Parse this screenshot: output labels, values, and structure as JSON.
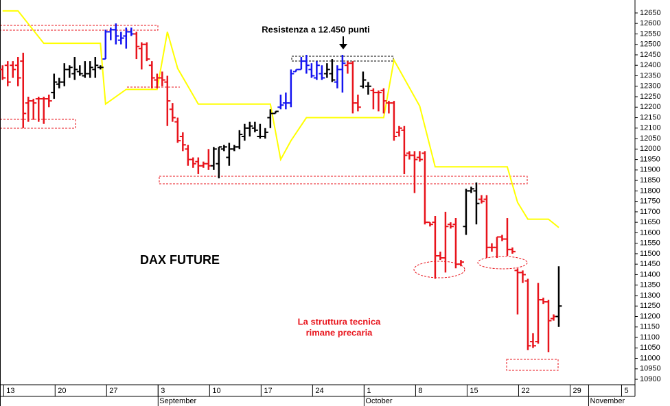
{
  "chart_data": {
    "type": "ohlc",
    "title": "DAX FUTURE",
    "annotations": [
      "Resistenza a 12.450 punti",
      "La struttura tecnica",
      "rimane precaria"
    ],
    "x": [
      0,
      1,
      2,
      3,
      4,
      5,
      6,
      7,
      8,
      9,
      10,
      11,
      12,
      13,
      14,
      15,
      16,
      17,
      18,
      19,
      20,
      21,
      22,
      23,
      24,
      25,
      26,
      27,
      28,
      29,
      30,
      31,
      32,
      33,
      34,
      35,
      36,
      37,
      38,
      39,
      40,
      41,
      42,
      43,
      44,
      45,
      46,
      47,
      48,
      49,
      50,
      51,
      52,
      53,
      54,
      55,
      56,
      57,
      58,
      59,
      60,
      61,
      62,
      63,
      64,
      65,
      66,
      67,
      68,
      69,
      70,
      71,
      72,
      73,
      74,
      75,
      76,
      77,
      78,
      79,
      80,
      81,
      82,
      83,
      84,
      85,
      86,
      87,
      88,
      89,
      90,
      91,
      92,
      93,
      94,
      95,
      96,
      97,
      98,
      99,
      100,
      101,
      102,
      103,
      104,
      105,
      106,
      107,
      108
    ],
    "open": [
      12380,
      12400,
      12400,
      12400,
      12420,
      12220,
      12230,
      12240,
      12240,
      12240,
      12270,
      12310,
      12320,
      12380,
      12360,
      12370,
      12350,
      12360,
      12380,
      12390,
      12430,
      12560,
      12570,
      12520,
      12540,
      12560,
      12550,
      12480,
      12500,
      12400,
      12330,
      12340,
      12320,
      12190,
      12130,
      12060,
      12000,
      11950,
      11940,
      11920,
      11930,
      11920,
      11930,
      12000,
      11960,
      12000,
      12010,
      12060,
      12100,
      12100,
      12060,
      12060,
      12150,
      12170,
      12200,
      12220,
      12220,
      12370,
      12380,
      12420,
      12380,
      12340,
      12360,
      12360,
      12360,
      12320,
      12380,
      12400,
      12410,
      12220,
      12300,
      12300,
      12280,
      12270,
      12280,
      12220,
      12220,
      12080,
      12090,
      11980,
      11970,
      11960,
      11980,
      11650,
      11650,
      11490,
      11480,
      11640,
      11640,
      11450,
      11630,
      11800,
      11800,
      11760,
      11760,
      11530,
      11530,
      11580,
      11570,
      11520,
      11420,
      11410,
      11370,
      11080,
      11080,
      11280,
      11270,
      11190,
      11200
    ],
    "high": [
      12400,
      12420,
      12420,
      12440,
      12460,
      12250,
      12240,
      12250,
      12250,
      12260,
      12360,
      12340,
      12410,
      12400,
      12440,
      12400,
      12420,
      12420,
      12440,
      12400,
      12570,
      12580,
      12600,
      12560,
      12580,
      12580,
      12560,
      12510,
      12510,
      12420,
      12360,
      12370,
      12350,
      12220,
      12150,
      12080,
      12020,
      11960,
      11960,
      11940,
      12000,
      12010,
      12010,
      12020,
      12030,
      12020,
      12090,
      12120,
      12130,
      12130,
      12120,
      12100,
      12190,
      12180,
      12260,
      12270,
      12380,
      12380,
      12440,
      12450,
      12410,
      12420,
      12400,
      12410,
      12430,
      12400,
      12450,
      12420,
      12420,
      12260,
      12370,
      12320,
      12290,
      12280,
      12290,
      12230,
      12230,
      12110,
      12110,
      11990,
      11990,
      11990,
      11990,
      11650,
      11680,
      11510,
      11700,
      11650,
      11670,
      11470,
      11810,
      11820,
      11840,
      11780,
      11780,
      11550,
      11580,
      11590,
      11670,
      11530,
      11430,
      11420,
      11380,
      11120,
      11360,
      11290,
      11280,
      11210,
      11440
    ],
    "low": [
      12330,
      12300,
      12340,
      12300,
      12100,
      12130,
      12140,
      12130,
      12120,
      12200,
      12240,
      12290,
      12300,
      12340,
      12330,
      12350,
      12340,
      12340,
      12340,
      12380,
      12430,
      12520,
      12500,
      12500,
      12480,
      12540,
      12430,
      12380,
      12420,
      12290,
      12290,
      12300,
      12110,
      12130,
      12030,
      11990,
      11920,
      11910,
      11880,
      11910,
      11900,
      11900,
      11860,
      11990,
      11920,
      11990,
      12000,
      12040,
      12060,
      12080,
      12050,
      12050,
      12100,
      12170,
      12190,
      12190,
      12200,
      12370,
      12380,
      12360,
      12340,
      12330,
      12330,
      12340,
      12320,
      12290,
      12270,
      12360,
      12170,
      12180,
      12290,
      12260,
      12190,
      12180,
      12170,
      12170,
      12040,
      12060,
      11880,
      11950,
      11790,
      11940,
      11640,
      11630,
      11380,
      11470,
      11410,
      11620,
      11430,
      11440,
      11590,
      11790,
      11640,
      11740,
      11480,
      11510,
      11480,
      11560,
      11490,
      11500,
      11210,
      11360,
      11040,
      11050,
      11070,
      11260,
      11030,
      11180,
      11150
    ],
    "close": [
      12340,
      12320,
      12380,
      12340,
      12170,
      12230,
      12220,
      12240,
      12240,
      12230,
      12320,
      12320,
      12380,
      12390,
      12380,
      12360,
      12360,
      12390,
      12400,
      12390,
      12560,
      12570,
      12540,
      12530,
      12560,
      12550,
      12490,
      12500,
      12430,
      12340,
      12340,
      12330,
      12230,
      12150,
      12040,
      12020,
      11950,
      11930,
      11920,
      11930,
      11920,
      12000,
      12010,
      12010,
      12000,
      12010,
      12070,
      12100,
      12110,
      12090,
      12060,
      12080,
      12170,
      12180,
      12210,
      12220,
      12360,
      12380,
      12420,
      12400,
      12350,
      12400,
      12340,
      12380,
      12330,
      12380,
      12410,
      12410,
      12220,
      12200,
      12330,
      12300,
      12270,
      12270,
      12230,
      12220,
      12060,
      12100,
      11970,
      11970,
      11950,
      11950,
      11650,
      11640,
      11490,
      11480,
      11630,
      11630,
      11450,
      11460,
      11800,
      11810,
      11740,
      11750,
      11530,
      11530,
      11580,
      11570,
      11520,
      11510,
      11410,
      11400,
      11060,
      11060,
      11280,
      11270,
      11180,
      11200,
      11250
    ],
    "bar_colors": [
      "#e8131b",
      "#e8131b",
      "#e8131b",
      "#e8131b",
      "#e8131b",
      "#e8131b",
      "#e8131b",
      "#e8131b",
      "#e8131b",
      "#e8131b",
      "#000000",
      "#000000",
      "#000000",
      "#000000",
      "#000000",
      "#000000",
      "#000000",
      "#000000",
      "#000000",
      "#000000",
      "#1414f0",
      "#1414f0",
      "#1414f0",
      "#1414f0",
      "#1414f0",
      "#1414f0",
      "#e8131b",
      "#e8131b",
      "#e8131b",
      "#e8131b",
      "#e8131b",
      "#e8131b",
      "#e8131b",
      "#e8131b",
      "#e8131b",
      "#e8131b",
      "#e8131b",
      "#e8131b",
      "#e8131b",
      "#e8131b",
      "#e8131b",
      "#000000",
      "#000000",
      "#000000",
      "#000000",
      "#000000",
      "#000000",
      "#000000",
      "#000000",
      "#000000",
      "#000000",
      "#000000",
      "#000000",
      "#000000",
      "#1414f0",
      "#1414f0",
      "#1414f0",
      "#1414f0",
      "#1414f0",
      "#1414f0",
      "#1414f0",
      "#1414f0",
      "#1414f0",
      "#000000",
      "#000000",
      "#1414f0",
      "#1414f0",
      "#e8131b",
      "#e8131b",
      "#e8131b",
      "#000000",
      "#000000",
      "#e8131b",
      "#e8131b",
      "#e8131b",
      "#e8131b",
      "#e8131b",
      "#e8131b",
      "#e8131b",
      "#e8131b",
      "#e8131b",
      "#e8131b",
      "#e8131b",
      "#e8131b",
      "#e8131b",
      "#e8131b",
      "#e8131b",
      "#e8131b",
      "#e8131b",
      "#e8131b",
      "#000000",
      "#000000",
      "#000000",
      "#e8131b",
      "#e8131b",
      "#e8131b",
      "#e8131b",
      "#e8131b",
      "#e8131b",
      "#e8131b",
      "#e8131b",
      "#e8131b",
      "#e8131b",
      "#e8131b",
      "#e8131b",
      "#e8131b",
      "#e8131b",
      "#e8131b",
      "#000000"
    ],
    "overlay": {
      "color": "#ffff00",
      "x": [
        0,
        3,
        8,
        19,
        20,
        24,
        30,
        32,
        34,
        38,
        52,
        54,
        56,
        59,
        74,
        76,
        81,
        84,
        98,
        100,
        102,
        106,
        108
      ],
      "values": [
        12660,
        12660,
        12505,
        12505,
        12215,
        12285,
        12285,
        12560,
        12385,
        12215,
        12215,
        11950,
        12040,
        12150,
        12150,
        12425,
        12205,
        11915,
        11915,
        11745,
        11665,
        11665,
        11625
      ]
    },
    "xlim": [
      -0.5,
      122.8
    ],
    "xticks": [
      {
        "value": 0.2,
        "label": "13"
      },
      {
        "value": 10.2,
        "label": "20"
      },
      {
        "value": 20.2,
        "label": "27"
      },
      {
        "value": 30.2,
        "label": "3"
      },
      {
        "value": 40.2,
        "label": "10"
      },
      {
        "value": 50.2,
        "label": "17"
      },
      {
        "value": 60.2,
        "label": "24"
      },
      {
        "value": 70.2,
        "label": "1"
      },
      {
        "value": 80.2,
        "label": "8"
      },
      {
        "value": 90.2,
        "label": "15"
      },
      {
        "value": 100.2,
        "label": "22"
      },
      {
        "value": 110.2,
        "label": "29"
      },
      {
        "value": 120.2,
        "label": "5"
      }
    ],
    "month_ticks": [
      {
        "value": 30.2,
        "label": "September"
      },
      {
        "value": 70.2,
        "label": "October"
      },
      {
        "value": 113.8,
        "label": "November"
      }
    ],
    "ylim": [
      10874,
      12712
    ],
    "yticks": [
      10900,
      10950,
      11000,
      11050,
      11100,
      11150,
      11200,
      11250,
      11300,
      11350,
      11400,
      11450,
      11500,
      11550,
      11600,
      11650,
      11700,
      11750,
      11800,
      11850,
      11900,
      11950,
      12000,
      12050,
      12100,
      12150,
      12200,
      12250,
      12300,
      12350,
      12400,
      12450,
      12500,
      12550,
      12600,
      12650
    ]
  }
}
